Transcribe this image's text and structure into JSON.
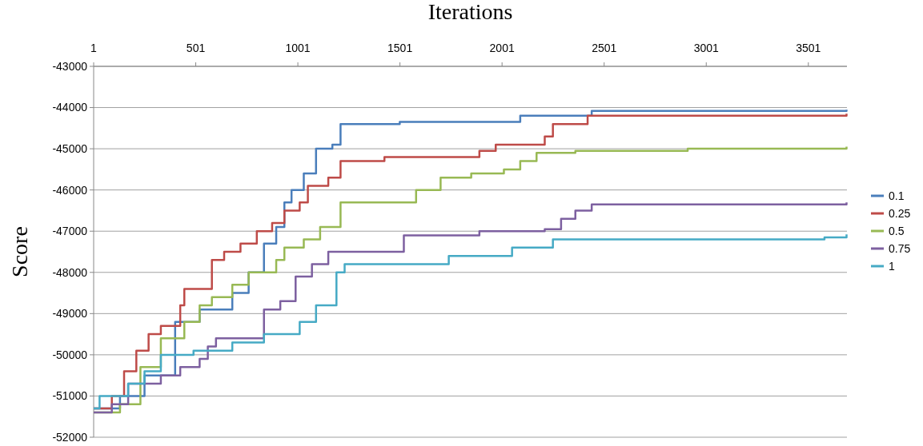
{
  "chart_data": {
    "type": "step",
    "xlabel": "Iterations",
    "ylabel": "Score",
    "xlim": [
      1,
      3690
    ],
    "xticks": [
      1,
      501,
      1001,
      1501,
      2001,
      2501,
      3001,
      3501
    ],
    "ylim": [
      -52000,
      -43000
    ],
    "yticks": [
      -52000,
      -51000,
      -50000,
      -49000,
      -48000,
      -47000,
      -46000,
      -45000,
      -44000,
      -43000
    ],
    "grid": "y",
    "legend": "right",
    "series": [
      {
        "name": "0.1",
        "color": "#4a7ebb",
        "x": [
          1,
          130,
          250,
          400,
          520,
          680,
          760,
          835,
          895,
          935,
          970,
          1030,
          1090,
          1170,
          1210,
          1500,
          2090,
          2440,
          3688
        ],
        "values": [
          -51300,
          -51000,
          -50500,
          -49200,
          -48900,
          -48500,
          -48000,
          -47300,
          -46900,
          -46300,
          -46000,
          -45600,
          -45000,
          -44900,
          -44400,
          -44350,
          -44200,
          -44080,
          -44050
        ]
      },
      {
        "name": "0.25",
        "color": "#be4b48",
        "x": [
          1,
          90,
          150,
          210,
          270,
          330,
          425,
          445,
          580,
          640,
          720,
          800,
          875,
          935,
          1010,
          1050,
          1150,
          1210,
          1425,
          1890,
          1970,
          2210,
          2250,
          2420,
          3688
        ],
        "values": [
          -51300,
          -51000,
          -50400,
          -49900,
          -49500,
          -49300,
          -48800,
          -48400,
          -47700,
          -47500,
          -47300,
          -47000,
          -46800,
          -46500,
          -46300,
          -45900,
          -45700,
          -45300,
          -45200,
          -45050,
          -44900,
          -44700,
          -44400,
          -44200,
          -44150
        ]
      },
      {
        "name": "0.5",
        "color": "#98b954",
        "x": [
          1,
          130,
          230,
          330,
          445,
          520,
          580,
          680,
          760,
          895,
          935,
          1030,
          1110,
          1210,
          1380,
          1580,
          1700,
          1850,
          2010,
          2090,
          2170,
          2360,
          2910,
          3688
        ],
        "values": [
          -51400,
          -51200,
          -50300,
          -49600,
          -49200,
          -48800,
          -48600,
          -48300,
          -48000,
          -47700,
          -47400,
          -47200,
          -46900,
          -46300,
          -46300,
          -46000,
          -45700,
          -45600,
          -45500,
          -45300,
          -45100,
          -45050,
          -45000,
          -44950
        ]
      },
      {
        "name": "0.75",
        "color": "#7d60a0",
        "x": [
          1,
          90,
          170,
          330,
          425,
          520,
          560,
          600,
          835,
          915,
          990,
          1070,
          1150,
          1345,
          1520,
          1890,
          2210,
          2290,
          2360,
          2440,
          3688
        ],
        "values": [
          -51400,
          -51200,
          -50700,
          -50500,
          -50300,
          -50100,
          -49800,
          -49600,
          -48900,
          -48700,
          -48100,
          -47800,
          -47500,
          -47500,
          -47100,
          -47000,
          -46950,
          -46700,
          -46500,
          -46350,
          -46300
        ]
      },
      {
        "name": "1",
        "color": "#46aac5",
        "x": [
          1,
          30,
          170,
          250,
          330,
          490,
          680,
          835,
          1010,
          1090,
          1190,
          1230,
          1660,
          1740,
          2050,
          2250,
          3580,
          3688
        ],
        "values": [
          -51300,
          -51000,
          -50700,
          -50400,
          -50000,
          -49900,
          -49700,
          -49500,
          -49200,
          -48800,
          -48000,
          -47800,
          -47800,
          -47600,
          -47400,
          -47200,
          -47150,
          -47080
        ]
      }
    ]
  }
}
